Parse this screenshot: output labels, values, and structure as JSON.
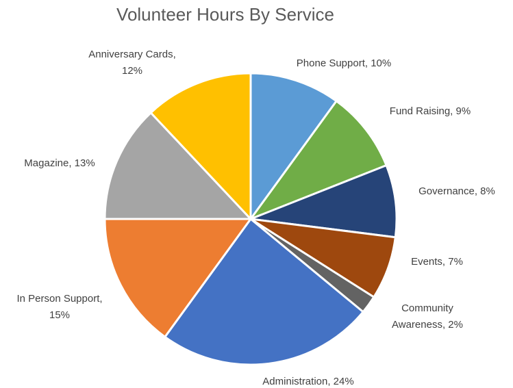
{
  "chart_data": {
    "type": "pie",
    "title": "Volunteer Hours By Service",
    "slices": [
      {
        "label": "Phone Support",
        "value": 10,
        "display": "10%",
        "color": "#5B9BD5"
      },
      {
        "label": "Fund Raising",
        "value": 9,
        "display": "9%",
        "color": "#70AD47"
      },
      {
        "label": "Governance",
        "value": 8,
        "display": "8%",
        "color": "#264478"
      },
      {
        "label": "Events",
        "value": 7,
        "display": "7%",
        "color": "#9E480E"
      },
      {
        "label": "Community Awareness",
        "value": 2,
        "display": "2%",
        "color": "#636363"
      },
      {
        "label": "Administration",
        "value": 24,
        "display": "24%",
        "color": "#4472C4"
      },
      {
        "label": "In Person Support",
        "value": 15,
        "display": "15%",
        "color": "#ED7D31"
      },
      {
        "label": "Magazine",
        "value": 13,
        "display": "13%",
        "color": "#A5A5A5"
      },
      {
        "label": "Anniversary Cards",
        "value": 12,
        "display": "12%",
        "color": "#FFC000"
      }
    ],
    "legend": "none",
    "data_labels": "category-and-percent"
  }
}
